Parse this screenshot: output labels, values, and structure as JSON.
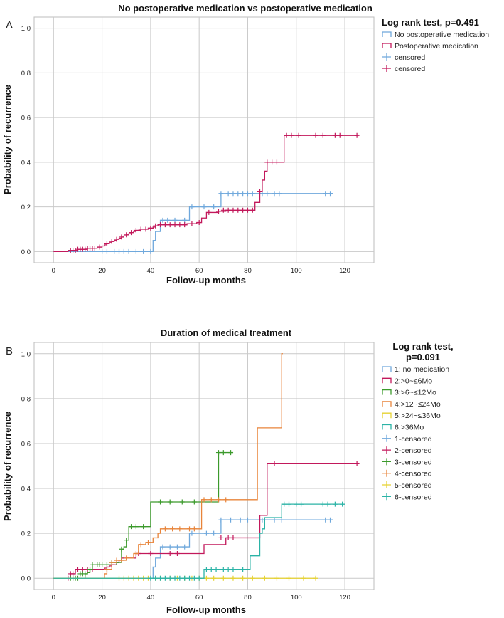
{
  "chart_data": [
    {
      "panel": "A",
      "type": "line",
      "subtype": "kaplan-meier cumulative incidence (step)",
      "title": "No postoperative medication vs postoperative medication",
      "xlabel": "Follow-up months",
      "ylabel": "Probability of recurrence",
      "xlim": [
        -8,
        132
      ],
      "ylim": [
        -0.05,
        1.05
      ],
      "xticks": [
        "0",
        "20",
        "40",
        "60",
        "80",
        "100",
        "120"
      ],
      "yticks": [
        "0.0",
        "0.2",
        "0.4",
        "0.6",
        "0.8",
        "1.0"
      ],
      "xtick_values": [
        0,
        20,
        40,
        60,
        80,
        100,
        120
      ],
      "ytick_values": [
        0,
        0.2,
        0.4,
        0.6,
        0.8,
        1.0
      ],
      "grid": true,
      "legend_title": "Log rank test, p=0.491",
      "legend": [
        {
          "label": "No postoperative medication",
          "kind": "step",
          "color": "#6fa8dc"
        },
        {
          "label": "Postoperative medication",
          "kind": "step",
          "color": "#c2185b"
        },
        {
          "label": "censored",
          "kind": "cross",
          "color": "#6fa8dc"
        },
        {
          "label": "censored",
          "kind": "cross",
          "color": "#c2185b"
        }
      ],
      "series": [
        {
          "name": "No postoperative medication",
          "color": "#6fa8dc",
          "x": [
            0,
            41,
            42,
            44,
            56,
            69,
            115
          ],
          "y": [
            0,
            0.05,
            0.09,
            0.14,
            0.2,
            0.26,
            0.26
          ],
          "censored_x": [
            20,
            22,
            25,
            27,
            29,
            31,
            34,
            37,
            40,
            45,
            47,
            50,
            54,
            57,
            62,
            66,
            69,
            72,
            74,
            76,
            78,
            80,
            82,
            86,
            88,
            91,
            93,
            112,
            114
          ],
          "censored_y": [
            0,
            0,
            0,
            0,
            0,
            0,
            0,
            0,
            0,
            0.14,
            0.14,
            0.14,
            0.14,
            0.2,
            0.2,
            0.2,
            0.26,
            0.26,
            0.26,
            0.26,
            0.26,
            0.26,
            0.26,
            0.26,
            0.26,
            0.26,
            0.26,
            0.26,
            0.26
          ]
        },
        {
          "name": "Postoperative medication",
          "color": "#c2185b",
          "x": [
            0,
            6,
            10,
            14,
            18,
            20,
            21,
            22,
            23,
            24,
            25,
            26,
            27,
            28,
            29,
            30,
            31,
            32,
            33,
            34,
            36,
            39,
            41,
            42,
            43,
            55,
            59,
            61,
            63,
            68,
            71,
            83,
            85,
            86,
            87,
            88,
            95,
            125
          ],
          "y": [
            0,
            0.005,
            0.01,
            0.015,
            0.02,
            0.025,
            0.03,
            0.035,
            0.04,
            0.045,
            0.05,
            0.055,
            0.06,
            0.065,
            0.07,
            0.075,
            0.08,
            0.085,
            0.09,
            0.095,
            0.1,
            0.105,
            0.11,
            0.115,
            0.12,
            0.125,
            0.13,
            0.15,
            0.175,
            0.18,
            0.185,
            0.22,
            0.27,
            0.32,
            0.36,
            0.4,
            0.52,
            0.52
          ],
          "censored_x": [
            7,
            8,
            9,
            10,
            11,
            12,
            13,
            14,
            15,
            16,
            17,
            19,
            22,
            24,
            26,
            28,
            30,
            32,
            34,
            36,
            38,
            40,
            42,
            44,
            46,
            48,
            50,
            52,
            54,
            57,
            60,
            64,
            68,
            70,
            72,
            74,
            76,
            78,
            80,
            82,
            85,
            88,
            90,
            92,
            96,
            98,
            101,
            108,
            111,
            116,
            118,
            125
          ],
          "censored_y": [
            0.005,
            0.005,
            0.005,
            0.01,
            0.01,
            0.01,
            0.01,
            0.015,
            0.015,
            0.015,
            0.015,
            0.02,
            0.035,
            0.045,
            0.055,
            0.065,
            0.075,
            0.085,
            0.095,
            0.1,
            0.1,
            0.105,
            0.115,
            0.12,
            0.12,
            0.12,
            0.12,
            0.12,
            0.12,
            0.125,
            0.13,
            0.175,
            0.18,
            0.185,
            0.185,
            0.185,
            0.185,
            0.185,
            0.185,
            0.185,
            0.27,
            0.4,
            0.4,
            0.4,
            0.52,
            0.52,
            0.52,
            0.52,
            0.52,
            0.52,
            0.52,
            0.52
          ]
        }
      ]
    },
    {
      "panel": "B",
      "type": "line",
      "subtype": "kaplan-meier cumulative incidence (step)",
      "title": "Duration of medical treatment",
      "xlabel": "Follow-up months",
      "ylabel": "Probability of recurrence",
      "xlim": [
        -8,
        132
      ],
      "ylim": [
        -0.05,
        1.05
      ],
      "xticks": [
        "0",
        "20",
        "40",
        "60",
        "80",
        "100",
        "120"
      ],
      "yticks": [
        "0.0",
        "0.2",
        "0.4",
        "0.6",
        "0.8",
        "1.0"
      ],
      "xtick_values": [
        0,
        20,
        40,
        60,
        80,
        100,
        120
      ],
      "ytick_values": [
        0,
        0.2,
        0.4,
        0.6,
        0.8,
        1.0
      ],
      "grid": true,
      "legend_title_lines": [
        "Log rank test,",
        "p=0.091"
      ],
      "legend": [
        {
          "label": "1: no medication",
          "kind": "step",
          "color": "#6fa8dc"
        },
        {
          "label": "2:>0~≤6Mo",
          "kind": "step",
          "color": "#c2185b"
        },
        {
          "label": "3:>6~≤12Mo",
          "kind": "step",
          "color": "#3c9a2c"
        },
        {
          "label": "4:>12~≤24Mo",
          "kind": "step",
          "color": "#e8843a"
        },
        {
          "label": "5:>24~≤36Mo",
          "kind": "step",
          "color": "#e6d232"
        },
        {
          "label": "6:>36Mo",
          "kind": "step",
          "color": "#2bb3a6"
        },
        {
          "label": "1-censored",
          "kind": "cross",
          "color": "#6fa8dc"
        },
        {
          "label": "2-censored",
          "kind": "cross",
          "color": "#c2185b"
        },
        {
          "label": "3-censored",
          "kind": "cross",
          "color": "#3c9a2c"
        },
        {
          "label": "4-censored",
          "kind": "cross",
          "color": "#e8843a"
        },
        {
          "label": "5-censored",
          "kind": "cross",
          "color": "#e6d232"
        },
        {
          "label": "6-censored",
          "kind": "cross",
          "color": "#2bb3a6"
        }
      ],
      "series": [
        {
          "name": "1: no medication",
          "color": "#6fa8dc",
          "x": [
            0,
            41,
            42,
            44,
            56,
            69,
            115
          ],
          "y": [
            0,
            0.05,
            0.09,
            0.14,
            0.2,
            0.26,
            0.26
          ],
          "censored_x": [
            45,
            48,
            51,
            54,
            57,
            63,
            66,
            69,
            73,
            77,
            80,
            86,
            91,
            94,
            112,
            114
          ],
          "censored_y": [
            0.14,
            0.14,
            0.14,
            0.14,
            0.2,
            0.2,
            0.2,
            0.26,
            0.26,
            0.26,
            0.26,
            0.26,
            0.26,
            0.26,
            0.26,
            0.26
          ]
        },
        {
          "name": "2:>0~≤6Mo",
          "color": "#c2185b",
          "x": [
            0,
            7,
            9,
            18,
            21,
            22,
            23,
            24,
            26,
            27,
            28,
            34,
            42,
            45,
            55,
            62,
            71,
            85,
            88,
            125
          ],
          "y": [
            0,
            0.02,
            0.04,
            0.04,
            0.045,
            0.05,
            0.055,
            0.06,
            0.07,
            0.08,
            0.09,
            0.11,
            0.11,
            0.11,
            0.11,
            0.15,
            0.18,
            0.28,
            0.51,
            0.51
          ],
          "censored_x": [
            6,
            7,
            8,
            10,
            12,
            14,
            16,
            24,
            26,
            35,
            40,
            48,
            51,
            69,
            72,
            74,
            91,
            125
          ],
          "censored_y": [
            0,
            0.02,
            0.02,
            0.04,
            0.04,
            0.04,
            0.04,
            0.06,
            0.07,
            0.11,
            0.11,
            0.11,
            0.11,
            0.18,
            0.18,
            0.18,
            0.51,
            0.51
          ]
        },
        {
          "name": "3:>6~≤12Mo",
          "color": "#3c9a2c",
          "x": [
            0,
            13,
            14,
            15,
            16,
            22,
            24,
            28,
            29,
            30,
            31,
            35,
            38,
            40,
            67,
            68,
            74
          ],
          "y": [
            0,
            0.02,
            0.025,
            0.04,
            0.06,
            0.06,
            0.07,
            0.13,
            0.14,
            0.17,
            0.23,
            0.23,
            0.23,
            0.34,
            0.34,
            0.56,
            0.56
          ],
          "censored_x": [
            7,
            8,
            9,
            10,
            11,
            12,
            13,
            15,
            16,
            18,
            19,
            20,
            22,
            24,
            26,
            28,
            30,
            32,
            34,
            37,
            44,
            48,
            53,
            58,
            68,
            70,
            73
          ],
          "censored_y": [
            0,
            0,
            0,
            0,
            0.02,
            0.02,
            0.02,
            0.04,
            0.06,
            0.06,
            0.06,
            0.06,
            0.06,
            0.07,
            0.07,
            0.13,
            0.17,
            0.23,
            0.23,
            0.23,
            0.34,
            0.34,
            0.34,
            0.34,
            0.56,
            0.56,
            0.56
          ]
        },
        {
          "name": "4:>12~≤24Mo",
          "color": "#e8843a",
          "x": [
            0,
            21,
            22,
            24,
            26,
            30,
            33,
            35,
            38,
            41,
            43,
            44,
            61,
            68,
            84,
            94,
            94.5
          ],
          "y": [
            0,
            0.02,
            0.04,
            0.07,
            0.08,
            0.09,
            0.11,
            0.15,
            0.16,
            0.18,
            0.2,
            0.22,
            0.35,
            0.35,
            0.67,
            1.0,
            1.0
          ],
          "censored_x": [
            22,
            24,
            26,
            28,
            30,
            34,
            36,
            39,
            46,
            49,
            52,
            56,
            58,
            62,
            65,
            68,
            71
          ],
          "censored_y": [
            0.04,
            0.07,
            0.08,
            0.08,
            0.09,
            0.11,
            0.15,
            0.16,
            0.22,
            0.22,
            0.22,
            0.22,
            0.22,
            0.35,
            0.35,
            0.35,
            0.35
          ]
        },
        {
          "name": "5:>24~≤36Mo",
          "color": "#e6d232",
          "x": [
            0,
            108
          ],
          "y": [
            0,
            0
          ],
          "censored_x": [
            27,
            29,
            31,
            33,
            35,
            37,
            39,
            42,
            44,
            48,
            51,
            54,
            57,
            60,
            63,
            66,
            70,
            74,
            78,
            82,
            87,
            92,
            97,
            103,
            108
          ],
          "censored_y": [
            0,
            0,
            0,
            0,
            0,
            0,
            0,
            0,
            0,
            0,
            0,
            0,
            0,
            0,
            0,
            0,
            0,
            0,
            0,
            0,
            0,
            0,
            0,
            0,
            0
          ]
        },
        {
          "name": "6:>36Mo",
          "color": "#2bb3a6",
          "x": [
            0,
            62,
            81,
            85,
            86,
            87,
            94,
            120
          ],
          "y": [
            0,
            0.04,
            0.1,
            0.2,
            0.22,
            0.27,
            0.33,
            0.33
          ],
          "censored_x": [
            40,
            42,
            44,
            46,
            48,
            50,
            52,
            54,
            56,
            58,
            60,
            63,
            65,
            67,
            70,
            72,
            74,
            78,
            95,
            97,
            100,
            102,
            111,
            113,
            116,
            119
          ],
          "censored_y": [
            0,
            0,
            0,
            0,
            0,
            0,
            0,
            0,
            0,
            0,
            0,
            0.04,
            0.04,
            0.04,
            0.04,
            0.04,
            0.04,
            0.04,
            0.33,
            0.33,
            0.33,
            0.33,
            0.33,
            0.33,
            0.33,
            0.33
          ]
        }
      ]
    }
  ]
}
